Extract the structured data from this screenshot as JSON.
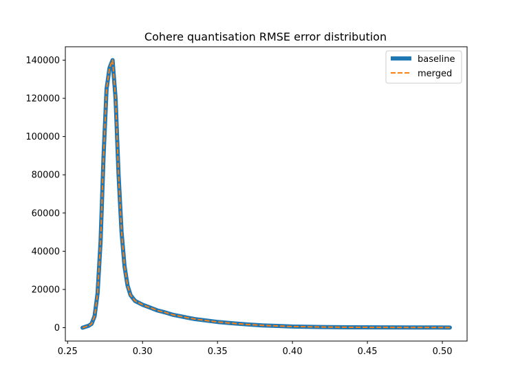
{
  "chart_data": {
    "type": "line",
    "title": "Cohere quantisation RMSE error distribution",
    "xlabel": "",
    "ylabel": "",
    "xlim": [
      0.2485,
      0.5165
    ],
    "ylim": [
      -7000,
      147000
    ],
    "xticks": [
      0.25,
      0.3,
      0.35,
      0.4,
      0.45,
      0.5
    ],
    "xtick_labels": [
      "0.25",
      "0.30",
      "0.35",
      "0.40",
      "0.45",
      "0.50"
    ],
    "yticks": [
      0,
      20000,
      40000,
      60000,
      80000,
      100000,
      120000,
      140000
    ],
    "ytick_labels": [
      "0",
      "20000",
      "40000",
      "60000",
      "80000",
      "100000",
      "120000",
      "140000"
    ],
    "grid": false,
    "legend": "upper-right",
    "series": [
      {
        "name": "baseline",
        "color": "#1f77b4",
        "style": "solid",
        "x": [
          0.26,
          0.264,
          0.266,
          0.268,
          0.27,
          0.272,
          0.274,
          0.276,
          0.278,
          0.28,
          0.282,
          0.284,
          0.286,
          0.288,
          0.29,
          0.292,
          0.295,
          0.3,
          0.305,
          0.31,
          0.315,
          0.32,
          0.325,
          0.33,
          0.335,
          0.34,
          0.345,
          0.35,
          0.36,
          0.37,
          0.38,
          0.39,
          0.4,
          0.42,
          0.44,
          0.46,
          0.48,
          0.505
        ],
        "y": [
          0,
          1000,
          2000,
          6000,
          18000,
          45000,
          90000,
          125000,
          136000,
          140000,
          120000,
          80000,
          50000,
          32000,
          22000,
          17000,
          14000,
          12000,
          10500,
          9000,
          8000,
          6800,
          6000,
          5200,
          4500,
          4000,
          3500,
          3000,
          2300,
          1700,
          1200,
          900,
          600,
          350,
          200,
          150,
          100,
          80
        ]
      },
      {
        "name": "merged",
        "color": "#ff7f0e",
        "style": "dashed",
        "x": [
          0.26,
          0.264,
          0.266,
          0.268,
          0.27,
          0.272,
          0.274,
          0.276,
          0.278,
          0.28,
          0.282,
          0.284,
          0.286,
          0.288,
          0.29,
          0.292,
          0.295,
          0.3,
          0.305,
          0.31,
          0.315,
          0.32,
          0.325,
          0.33,
          0.335,
          0.34,
          0.345,
          0.35,
          0.36,
          0.37,
          0.38,
          0.39,
          0.4,
          0.42,
          0.44,
          0.46,
          0.48,
          0.505
        ],
        "y": [
          0,
          1000,
          2000,
          6000,
          18000,
          45000,
          90000,
          125000,
          136000,
          140000,
          120000,
          80000,
          50000,
          32000,
          22000,
          17000,
          14000,
          12000,
          10500,
          9000,
          8000,
          6800,
          6000,
          5200,
          4500,
          4000,
          3500,
          3000,
          2300,
          1700,
          1200,
          900,
          600,
          350,
          200,
          150,
          100,
          80
        ]
      }
    ]
  }
}
